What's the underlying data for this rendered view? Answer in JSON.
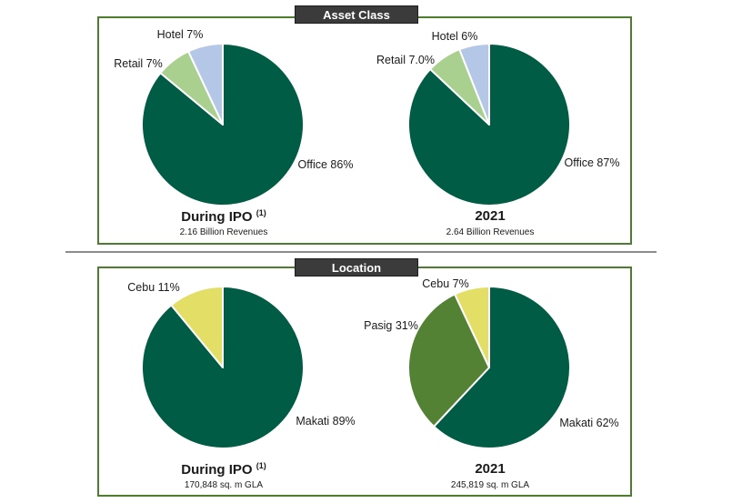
{
  "sections": {
    "asset_class": "Asset Class",
    "location": "Location"
  },
  "chart_data": [
    {
      "type": "pie",
      "section": "Asset Class",
      "title": "During IPO",
      "footnote": "(1)",
      "subtitle": "2.16 Billion Revenues",
      "slices": [
        {
          "label": "Office 86%",
          "value": 86,
          "color": "#005c44"
        },
        {
          "label": "Retail 7%",
          "value": 7,
          "color": "#a9d08e"
        },
        {
          "label": "Hotel 7%",
          "value": 7,
          "color": "#b4c7e7"
        }
      ]
    },
    {
      "type": "pie",
      "section": "Asset Class",
      "title": "2021",
      "footnote": "",
      "subtitle": "2.64 Billion Revenues",
      "slices": [
        {
          "label": "Office 87%",
          "value": 87,
          "color": "#005c44"
        },
        {
          "label": "Retail 7.0%",
          "value": 7,
          "color": "#a9d08e"
        },
        {
          "label": "Hotel 6%",
          "value": 6,
          "color": "#b4c7e7"
        }
      ]
    },
    {
      "type": "pie",
      "section": "Location",
      "title": "During IPO",
      "footnote": "(1)",
      "subtitle": "170,848 sq. m GLA",
      "slices": [
        {
          "label": "Makati 89%",
          "value": 89,
          "color": "#005c44"
        },
        {
          "label": "Cebu 11%",
          "value": 11,
          "color": "#e2de66"
        }
      ]
    },
    {
      "type": "pie",
      "section": "Location",
      "title": "2021",
      "footnote": "",
      "subtitle": "245,819 sq. m GLA",
      "slices": [
        {
          "label": "Makati 62%",
          "value": 62,
          "color": "#005c44"
        },
        {
          "label": "Pasig 31%",
          "value": 31,
          "color": "#548235"
        },
        {
          "label": "Cebu 7%",
          "value": 7,
          "color": "#e2de66"
        }
      ]
    }
  ]
}
